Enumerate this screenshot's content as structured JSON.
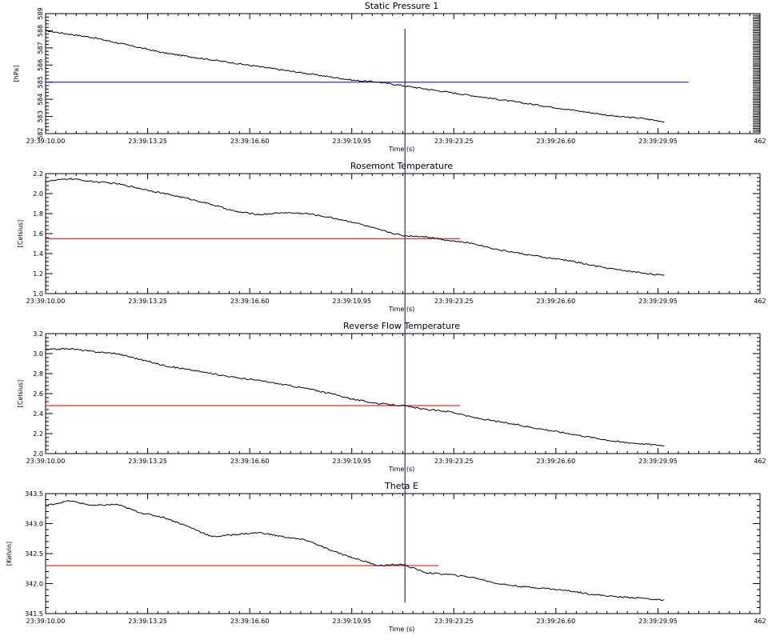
{
  "chart_data": [
    {
      "type": "line",
      "title": "Static Pressure 1",
      "xlabel": "Time (s)",
      "ylabel": "[hPa]",
      "x_tick_labels": [
        "23:39:10.00",
        "23:39:13.25",
        "23:39:16.60",
        "23:39:19.95",
        "23:39:23.25",
        "23:39:26.60",
        "23:39:29.95",
        "462"
      ],
      "y_tick_labels": [
        "582",
        "583",
        "584",
        "585",
        "586",
        "587",
        "588",
        "589"
      ],
      "ylim": [
        582,
        589
      ],
      "y_ticks": [
        582,
        583,
        584,
        585,
        586,
        587,
        588,
        589
      ],
      "y_minor": 0.2,
      "y_right_dense_ticks": true,
      "reference_line": {
        "value": 585.0,
        "x_end": 0.9,
        "color": "#0000cc"
      },
      "series": [
        {
          "values": [
            588.0,
            587.8,
            587.6,
            587.3,
            587.0,
            586.7,
            586.5,
            586.3,
            586.1,
            585.9,
            585.7,
            585.5,
            585.3,
            585.1,
            585.0,
            584.8,
            584.6,
            584.4,
            584.2,
            584.0,
            583.8,
            583.6,
            583.4,
            583.2,
            583.0,
            582.9,
            582.7
          ]
        }
      ]
    },
    {
      "type": "line",
      "title": "Rosemont Temperature",
      "xlabel": "Time (s)",
      "ylabel": "[Celsius]",
      "x_tick_labels": [
        "23:39:10.00",
        "23:39:13.25",
        "23:39:16.60",
        "23:39:19.95",
        "23:39:23.25",
        "23:39:26.60",
        "23:39:29.95",
        "462"
      ],
      "y_tick_labels": [
        "1.0",
        "1.2",
        "1.4",
        "1.6",
        "1.8",
        "2.0",
        "2.2"
      ],
      "ylim": [
        1.0,
        2.2
      ],
      "y_ticks": [
        1.0,
        1.2,
        1.4,
        1.6,
        1.8,
        2.0,
        2.2
      ],
      "y_minor": 0.04,
      "y_right_dense_ticks": false,
      "reference_line": {
        "value": 1.55,
        "x_end": 0.58,
        "color": "#cc0000"
      },
      "series": [
        {
          "values": [
            2.12,
            2.15,
            2.12,
            2.1,
            2.05,
            2.0,
            1.95,
            1.89,
            1.82,
            1.79,
            1.81,
            1.8,
            1.76,
            1.71,
            1.64,
            1.58,
            1.57,
            1.53,
            1.5,
            1.44,
            1.4,
            1.36,
            1.33,
            1.28,
            1.24,
            1.21,
            1.18
          ]
        }
      ]
    },
    {
      "type": "line",
      "title": "Reverse Flow Temperature",
      "xlabel": "Time (s)",
      "ylabel": "[Celsius]",
      "x_tick_labels": [
        "23:39:10.00",
        "23:39:13.25",
        "23:39:16.60",
        "23:39:19.95",
        "23:39:23.25",
        "23:39:26.60",
        "23:39:29.95",
        "462"
      ],
      "y_tick_labels": [
        "2.0",
        "2.2",
        "2.4",
        "2.6",
        "2.8",
        "3.0",
        "3.2"
      ],
      "ylim": [
        2.0,
        3.2
      ],
      "y_ticks": [
        2.0,
        2.2,
        2.4,
        2.6,
        2.8,
        3.0,
        3.2
      ],
      "y_minor": 0.04,
      "y_right_dense_ticks": false,
      "reference_line": {
        "value": 2.48,
        "x_end": 0.58,
        "color": "#cc0000"
      },
      "series": [
        {
          "values": [
            3.04,
            3.05,
            3.02,
            3.0,
            2.94,
            2.88,
            2.84,
            2.8,
            2.76,
            2.73,
            2.69,
            2.65,
            2.6,
            2.54,
            2.5,
            2.48,
            2.44,
            2.42,
            2.36,
            2.32,
            2.28,
            2.24,
            2.2,
            2.16,
            2.12,
            2.1,
            2.08
          ]
        }
      ]
    },
    {
      "type": "line",
      "title": "Theta E",
      "xlabel": "Time (s)",
      "ylabel": "[Kelvin]",
      "x_tick_labels": [
        "23:39:10.00",
        "23:39:13.25",
        "23:39:16.60",
        "23:39:19.95",
        "23:39:23.25",
        "23:39:26.60",
        "23:39:29.95",
        "462"
      ],
      "y_tick_labels": [
        "341.5",
        "342.0",
        "342.5",
        "343.0",
        "343.5"
      ],
      "ylim": [
        341.5,
        343.5
      ],
      "y_ticks": [
        341.5,
        342.0,
        342.5,
        343.0,
        343.5
      ],
      "y_minor": 0.1,
      "y_right_dense_ticks": false,
      "reference_line": {
        "value": 342.3,
        "x_end": 0.55,
        "color": "#cc0000"
      },
      "series": [
        {
          "values": [
            343.3,
            343.38,
            343.3,
            343.32,
            343.18,
            343.1,
            342.95,
            342.78,
            342.82,
            342.85,
            342.78,
            342.72,
            342.55,
            342.42,
            342.3,
            342.32,
            342.18,
            342.15,
            342.1,
            342.0,
            341.95,
            341.92,
            341.88,
            341.82,
            341.78,
            341.76,
            341.72
          ]
        }
      ]
    }
  ],
  "cursor": {
    "x_fraction": 0.503,
    "color": "#000080"
  },
  "trace_color": "#000000"
}
